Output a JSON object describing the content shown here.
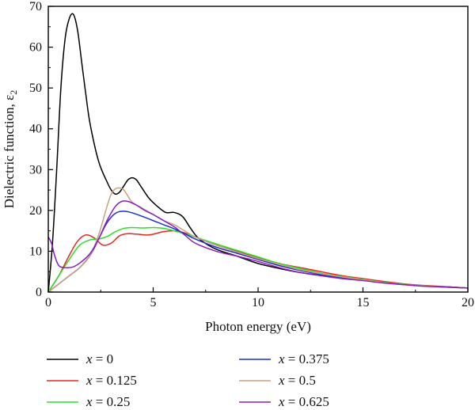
{
  "chart_data": {
    "type": "line",
    "xlabel": "Photon energy (eV)",
    "ylabel": "Dielectric function, ε",
    "ylabel_subscript": "2",
    "xlim": [
      0,
      20
    ],
    "ylim": [
      0,
      70
    ],
    "xticks": [
      0,
      5,
      10,
      15,
      20
    ],
    "yticks": [
      0,
      10,
      20,
      30,
      40,
      50,
      60,
      70
    ],
    "grid": false,
    "legend_position": "bottom",
    "series": [
      {
        "name": "x = 0",
        "label_var": "x",
        "label_value": "0",
        "color": "#000000",
        "x": [
          0,
          0.2,
          0.4,
          0.6,
          0.8,
          1.0,
          1.2,
          1.4,
          1.6,
          1.8,
          2.0,
          2.4,
          2.8,
          3.0,
          3.2,
          3.4,
          3.6,
          3.8,
          4.0,
          4.2,
          4.4,
          4.8,
          5.2,
          5.6,
          6.0,
          6.4,
          6.8,
          7.2,
          8.0,
          9.0,
          10.0,
          11.0,
          12.0,
          13.0,
          14.0,
          15.0,
          16.0,
          17.0,
          18.0,
          19.0,
          20.0
        ],
        "y": [
          0,
          12,
          30,
          50,
          62,
          67,
          68,
          64,
          56,
          48,
          41,
          32,
          27,
          25,
          24,
          24.5,
          26,
          27.5,
          28,
          27.5,
          26,
          23,
          21,
          19.5,
          19.5,
          18.5,
          15.5,
          13,
          10.5,
          8.8,
          7.0,
          5.8,
          4.8,
          4.1,
          3.6,
          3.2,
          2.5,
          1.9,
          1.5,
          1.3,
          1.0
        ]
      },
      {
        "name": "x = 0.125",
        "label_var": "x",
        "label_value": "0.125",
        "color": "#e8261d",
        "x": [
          0,
          0.5,
          1.0,
          1.4,
          1.8,
          2.2,
          2.6,
          3.0,
          3.4,
          3.8,
          4.2,
          4.8,
          5.5,
          6.0,
          6.5,
          7.0,
          8.0,
          9.0,
          10.0,
          11.0,
          12.0,
          13.0,
          14.0,
          15.0,
          16.0,
          17.0,
          18.0,
          19.0,
          20.0
        ],
        "y": [
          0,
          4,
          9,
          12.5,
          14,
          13.2,
          11.5,
          12,
          13.8,
          14.3,
          14.2,
          14.0,
          14.8,
          15.0,
          14.5,
          13.5,
          11.5,
          10.0,
          8.5,
          7.0,
          6.0,
          5.0,
          4.0,
          3.3,
          2.6,
          2.0,
          1.6,
          1.3,
          1.0
        ]
      },
      {
        "name": "x = 0.25",
        "label_var": "x",
        "label_value": "0.25",
        "color": "#28e028",
        "x": [
          0,
          0.5,
          1.0,
          1.5,
          2.0,
          2.4,
          2.8,
          3.2,
          3.6,
          4.0,
          4.5,
          5.0,
          5.5,
          6.0,
          6.5,
          7.0,
          8.0,
          9.0,
          10.0,
          11.0,
          12.0,
          13.0,
          14.0,
          15.0,
          16.0,
          17.0,
          18.0,
          19.0,
          20.0
        ],
        "y": [
          0,
          4,
          8,
          11.5,
          12.8,
          13.0,
          13.6,
          14.8,
          15.6,
          15.8,
          15.7,
          15.8,
          15.6,
          15.0,
          14.3,
          13.5,
          11.8,
          10.2,
          8.6,
          7.0,
          5.8,
          4.6,
          3.8,
          3.1,
          2.4,
          1.9,
          1.5,
          1.2,
          1.0
        ]
      },
      {
        "name": "x = 0.375",
        "label_var": "x",
        "label_value": "0.375",
        "color": "#1c2fd8",
        "x": [
          0,
          0.5,
          1.0,
          1.5,
          2.0,
          2.4,
          2.8,
          3.2,
          3.6,
          4.0,
          4.5,
          5.0,
          5.5,
          6.0,
          6.5,
          7.0,
          8.0,
          9.0,
          10.0,
          11.0,
          12.0,
          13.0,
          14.0,
          15.0,
          16.0,
          17.0,
          18.0,
          19.0,
          20.0
        ],
        "y": [
          0,
          2,
          4,
          6,
          9,
          13,
          17,
          19.3,
          19.8,
          19.4,
          18.5,
          17.5,
          16.5,
          15.5,
          14.3,
          13.0,
          11.0,
          9.5,
          8.0,
          6.5,
          5.3,
          4.3,
          3.5,
          2.9,
          2.3,
          1.8,
          1.5,
          1.2,
          1.0
        ]
      },
      {
        "name": "x = 0.5",
        "label_var": "x",
        "label_value": "0.5",
        "color": "#c8a07a",
        "x": [
          0,
          0.5,
          1.0,
          1.5,
          2.0,
          2.4,
          2.8,
          3.0,
          3.2,
          3.4,
          3.6,
          3.8,
          4.0,
          4.5,
          5.0,
          5.5,
          6.0,
          6.5,
          7.0,
          8.0,
          9.0,
          10.0,
          11.0,
          12.0,
          13.0,
          14.0,
          15.0,
          16.0,
          17.0,
          18.0,
          19.0,
          20.0
        ],
        "y": [
          0,
          2,
          4,
          6,
          9,
          14,
          21,
          24,
          25.3,
          25.5,
          25.0,
          23.5,
          22.0,
          20.5,
          19.0,
          17.5,
          16.5,
          15.0,
          13.5,
          11.5,
          9.8,
          8.2,
          6.8,
          5.5,
          4.5,
          3.7,
          3.0,
          2.3,
          1.8,
          1.5,
          1.2,
          1.0
        ]
      },
      {
        "name": "x = 0.625",
        "label_var": "x",
        "label_value": "0.625",
        "color": "#8a1cc0",
        "x": [
          0,
          0.15,
          0.3,
          0.5,
          0.8,
          1.2,
          1.6,
          2.0,
          2.4,
          2.8,
          3.2,
          3.5,
          3.8,
          4.2,
          4.6,
          5.0,
          5.5,
          6.0,
          6.5,
          7.0,
          8.0,
          9.0,
          10.0,
          11.0,
          12.0,
          13.0,
          14.0,
          15.0,
          16.0,
          17.0,
          18.0,
          19.0,
          20.0
        ],
        "y": [
          13.5,
          12,
          9,
          6.5,
          6,
          6.2,
          7.5,
          9.5,
          13,
          17.5,
          21,
          22.2,
          22.2,
          21.3,
          20.0,
          19.0,
          17.5,
          16.0,
          14.0,
          12.0,
          10.0,
          8.8,
          7.5,
          6.0,
          4.8,
          4.0,
          3.3,
          2.8,
          2.2,
          1.8,
          1.4,
          1.2,
          1.0
        ]
      }
    ]
  }
}
